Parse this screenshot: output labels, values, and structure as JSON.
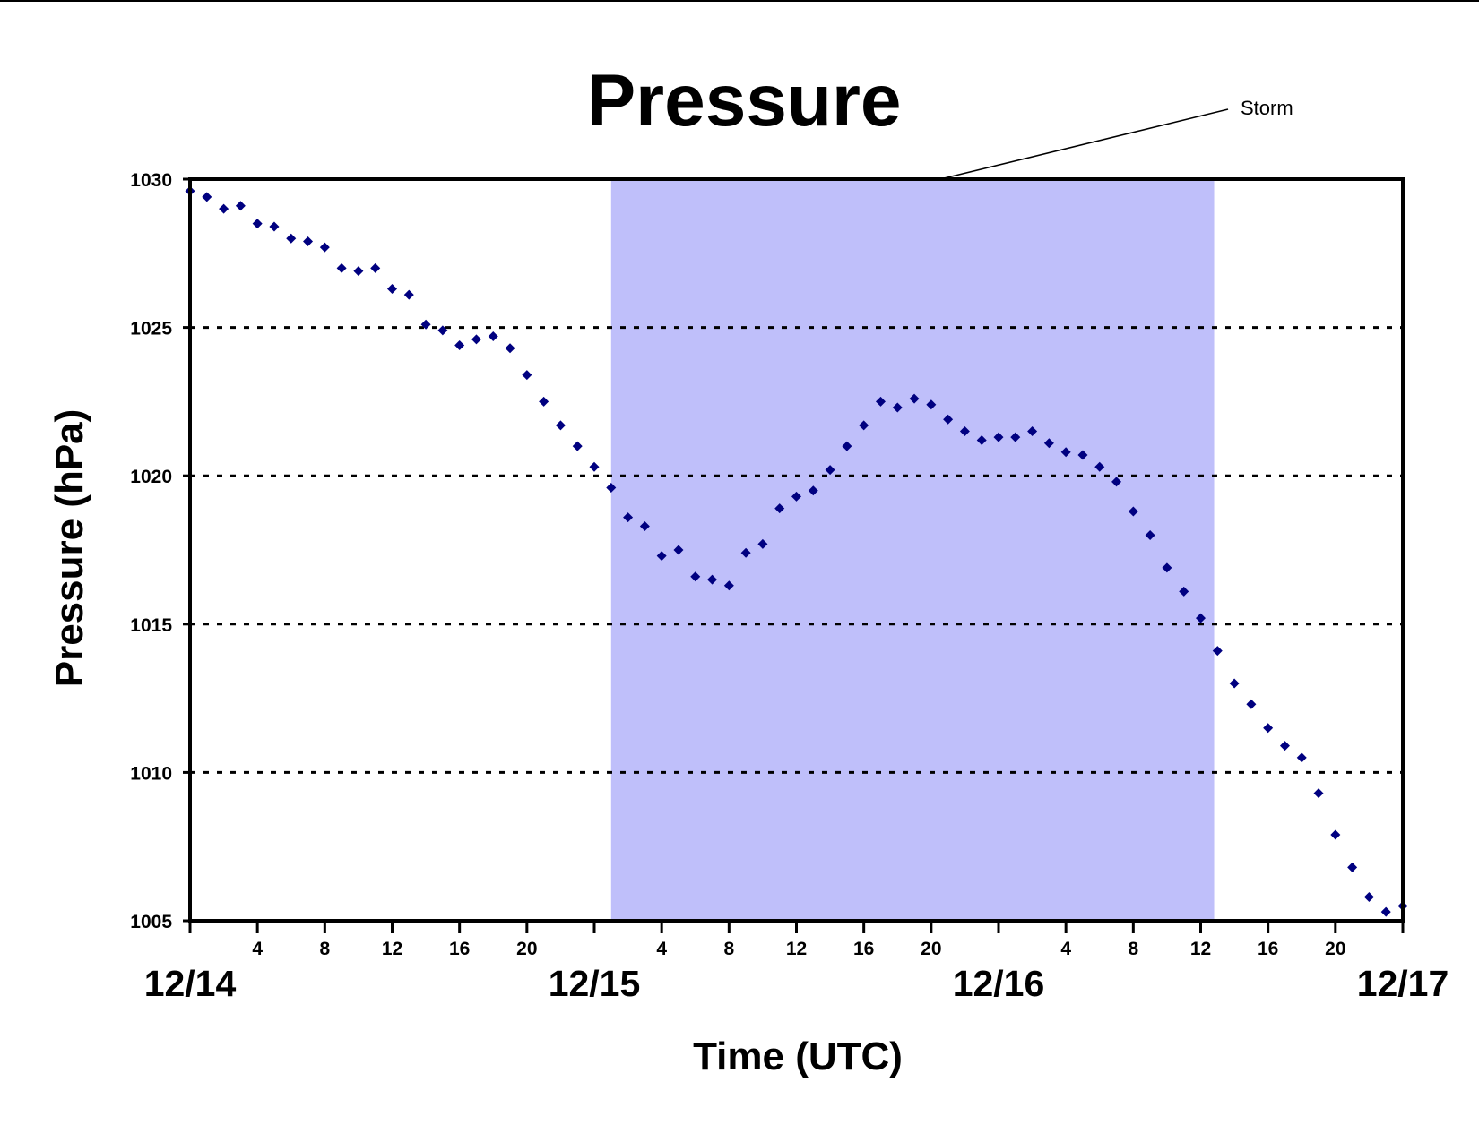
{
  "chart_data": {
    "type": "scatter",
    "title": "Pressure",
    "xlabel": "Time (UTC)",
    "ylabel": "Pressure (hPa)",
    "ylim": [
      1005,
      1030
    ],
    "yticks": [
      "1005",
      "1010",
      "1015",
      "1020",
      "1025",
      "1030"
    ],
    "grid": "dotted horizontal lines at 1010, 1015, 1020, 1025",
    "xlim_hours": [
      0,
      72
    ],
    "day_labels": [
      "12/14",
      "12/15",
      "12/16",
      "12/17"
    ],
    "hour_tick_labels": [
      {
        "hour": 4,
        "label": "4"
      },
      {
        "hour": 8,
        "label": "8"
      },
      {
        "hour": 12,
        "label": "12"
      },
      {
        "hour": 16,
        "label": "16"
      },
      {
        "hour": 20,
        "label": "20"
      },
      {
        "hour": 28,
        "label": "4"
      },
      {
        "hour": 32,
        "label": "8"
      },
      {
        "hour": 36,
        "label": "12"
      },
      {
        "hour": 40,
        "label": "16"
      },
      {
        "hour": 44,
        "label": "20"
      },
      {
        "hour": 52,
        "label": "4"
      },
      {
        "hour": 56,
        "label": "8"
      },
      {
        "hour": 60,
        "label": "12"
      },
      {
        "hour": 64,
        "label": "16"
      },
      {
        "hour": 68,
        "label": "20"
      }
    ],
    "shaded_region": {
      "label": "Storm",
      "x_start_hour": 25,
      "x_end_hour": 60.8,
      "color": "#bfbffa"
    },
    "marker_color": "#000080",
    "series": [
      {
        "x_hours": [
          0,
          1,
          2,
          3,
          4,
          5,
          6,
          7,
          8,
          9,
          10,
          11,
          12,
          13,
          14,
          15,
          16,
          17,
          18,
          19,
          20,
          21,
          22,
          23,
          24,
          25,
          26,
          27,
          28,
          29,
          30,
          31,
          32,
          33,
          34,
          35,
          36,
          37,
          38,
          39,
          40,
          41,
          42,
          43,
          44,
          45,
          46,
          47,
          48,
          49,
          50,
          51,
          52,
          53,
          54,
          55,
          56,
          57,
          58,
          59,
          60,
          61,
          62,
          63,
          64,
          65,
          66,
          67,
          68,
          69,
          70,
          71,
          72
        ],
        "y": [
          1029.6,
          1029.4,
          1029.0,
          1029.1,
          1028.5,
          1028.4,
          1028.0,
          1027.9,
          1027.7,
          1027.0,
          1026.9,
          1027.0,
          1026.3,
          1026.1,
          1025.1,
          1024.9,
          1024.4,
          1024.6,
          1024.7,
          1024.3,
          1023.4,
          1022.5,
          1021.7,
          1021.0,
          1020.3,
          1019.6,
          1018.6,
          1018.3,
          1017.3,
          1017.5,
          1016.6,
          1016.5,
          1016.3,
          1017.4,
          1017.7,
          1018.9,
          1019.3,
          1019.5,
          1020.2,
          1021.0,
          1021.7,
          1022.5,
          1022.3,
          1022.6,
          1022.4,
          1021.9,
          1021.5,
          1021.2,
          1021.3,
          1021.3,
          1021.5,
          1021.1,
          1020.8,
          1020.7,
          1020.3,
          1019.8,
          1018.8,
          1018.0,
          1016.9,
          1016.1,
          1015.2,
          1014.1,
          1013.0,
          1012.3,
          1011.5,
          1010.9,
          1010.5,
          1009.3,
          1007.9,
          1006.8,
          1005.8,
          1005.3,
          1005.5
        ]
      }
    ]
  }
}
